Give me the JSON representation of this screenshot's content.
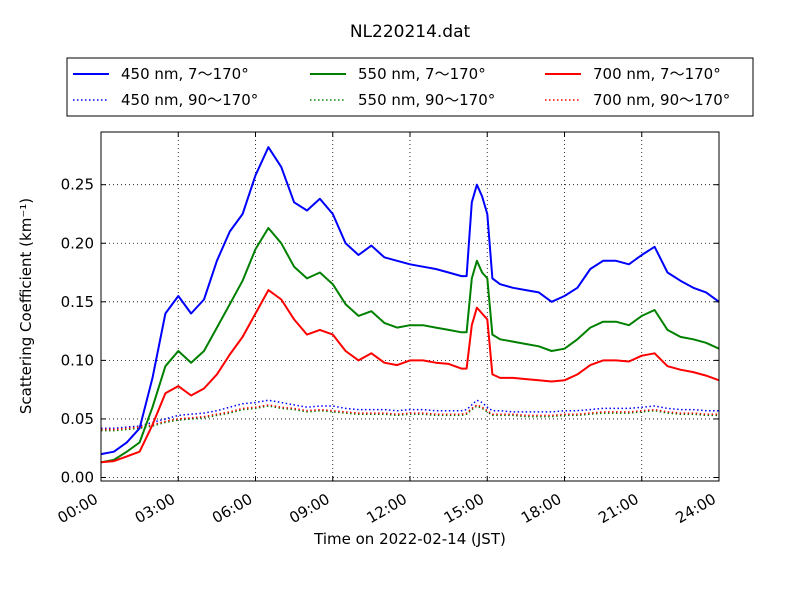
{
  "chart_data": {
    "type": "line",
    "title": "NL220214.dat",
    "xlabel": "Time on 2022-02-14 (JST)",
    "ylabel": "Scattering Coefficient (km⁻¹)",
    "x_tick_labels": [
      "00:00",
      "03:00",
      "06:00",
      "09:00",
      "12:00",
      "15:00",
      "18:00",
      "21:00",
      "24:00"
    ],
    "x_ticks_hours": [
      0,
      3,
      6,
      9,
      12,
      15,
      18,
      21,
      24
    ],
    "xlim_hours": [
      0,
      24
    ],
    "y_ticks": [
      0.0,
      0.05,
      0.1,
      0.15,
      0.2,
      0.25
    ],
    "y_tick_labels": [
      "0.00",
      "0.05",
      "0.10",
      "0.15",
      "0.20",
      "0.25"
    ],
    "ylim": [
      -0.003,
      0.295
    ],
    "grid": true,
    "legend_placement": "top, above plot, 3 columns",
    "x_hours": [
      0,
      0.5,
      1,
      1.5,
      2,
      2.5,
      3,
      3.5,
      4,
      4.5,
      5,
      5.5,
      6,
      6.5,
      7,
      7.5,
      8,
      8.5,
      9,
      9.5,
      10,
      10.5,
      11,
      11.5,
      12,
      12.5,
      13,
      13.5,
      14,
      14.2,
      14.4,
      14.6,
      14.8,
      15,
      15.2,
      15.5,
      16,
      16.5,
      17,
      17.5,
      18,
      18.5,
      19,
      19.5,
      20,
      20.5,
      21,
      21.5,
      22,
      22.5,
      23,
      23.5,
      24
    ],
    "series": [
      {
        "name": "450 nm, 7～170°",
        "color": "#0000ff",
        "style": "solid",
        "values": [
          0.02,
          0.022,
          0.03,
          0.042,
          0.085,
          0.14,
          0.155,
          0.14,
          0.152,
          0.185,
          0.21,
          0.225,
          0.258,
          0.282,
          0.265,
          0.235,
          0.228,
          0.238,
          0.225,
          0.2,
          0.19,
          0.198,
          0.188,
          0.185,
          0.182,
          0.18,
          0.178,
          0.175,
          0.172,
          0.172,
          0.235,
          0.25,
          0.24,
          0.225,
          0.17,
          0.165,
          0.162,
          0.16,
          0.158,
          0.15,
          0.155,
          0.162,
          0.178,
          0.185,
          0.185,
          0.182,
          0.19,
          0.197,
          0.175,
          0.168,
          0.162,
          0.158,
          0.15
        ]
      },
      {
        "name": "550 nm, 7～170°",
        "color": "#008000",
        "style": "solid",
        "values": [
          0.013,
          0.015,
          0.022,
          0.03,
          0.06,
          0.095,
          0.108,
          0.098,
          0.108,
          0.128,
          0.148,
          0.168,
          0.195,
          0.213,
          0.2,
          0.18,
          0.17,
          0.175,
          0.165,
          0.148,
          0.138,
          0.142,
          0.132,
          0.128,
          0.13,
          0.13,
          0.128,
          0.126,
          0.124,
          0.124,
          0.17,
          0.185,
          0.175,
          0.17,
          0.122,
          0.118,
          0.116,
          0.114,
          0.112,
          0.108,
          0.11,
          0.118,
          0.128,
          0.133,
          0.133,
          0.13,
          0.138,
          0.143,
          0.126,
          0.12,
          0.118,
          0.115,
          0.11
        ]
      },
      {
        "name": "700 nm, 7～170°",
        "color": "#ff0000",
        "style": "solid",
        "values": [
          0.013,
          0.014,
          0.018,
          0.022,
          0.045,
          0.072,
          0.078,
          0.07,
          0.076,
          0.088,
          0.105,
          0.12,
          0.14,
          0.16,
          0.152,
          0.135,
          0.122,
          0.126,
          0.122,
          0.108,
          0.1,
          0.106,
          0.098,
          0.096,
          0.1,
          0.1,
          0.098,
          0.097,
          0.093,
          0.093,
          0.13,
          0.145,
          0.14,
          0.135,
          0.088,
          0.085,
          0.085,
          0.084,
          0.083,
          0.082,
          0.083,
          0.088,
          0.096,
          0.1,
          0.1,
          0.099,
          0.104,
          0.106,
          0.095,
          0.092,
          0.09,
          0.087,
          0.083
        ]
      },
      {
        "name": "450 nm, 90～170°",
        "color": "#0000ff",
        "style": "dotted",
        "values": [
          0.042,
          0.042,
          0.043,
          0.044,
          0.047,
          0.05,
          0.053,
          0.054,
          0.055,
          0.057,
          0.06,
          0.063,
          0.064,
          0.066,
          0.064,
          0.062,
          0.06,
          0.061,
          0.061,
          0.059,
          0.058,
          0.058,
          0.058,
          0.057,
          0.058,
          0.058,
          0.057,
          0.057,
          0.057,
          0.058,
          0.062,
          0.066,
          0.064,
          0.06,
          0.057,
          0.057,
          0.056,
          0.056,
          0.056,
          0.056,
          0.057,
          0.057,
          0.058,
          0.059,
          0.059,
          0.059,
          0.06,
          0.061,
          0.059,
          0.058,
          0.058,
          0.057,
          0.057
        ]
      },
      {
        "name": "550 nm, 90～170°",
        "color": "#008000",
        "style": "dotted",
        "values": [
          0.04,
          0.04,
          0.041,
          0.042,
          0.044,
          0.047,
          0.049,
          0.05,
          0.051,
          0.053,
          0.055,
          0.058,
          0.059,
          0.061,
          0.059,
          0.058,
          0.056,
          0.057,
          0.056,
          0.055,
          0.054,
          0.054,
          0.054,
          0.053,
          0.054,
          0.054,
          0.053,
          0.053,
          0.053,
          0.054,
          0.058,
          0.061,
          0.059,
          0.056,
          0.053,
          0.053,
          0.053,
          0.052,
          0.052,
          0.052,
          0.053,
          0.053,
          0.054,
          0.055,
          0.055,
          0.055,
          0.056,
          0.057,
          0.055,
          0.054,
          0.054,
          0.053,
          0.053
        ]
      },
      {
        "name": "700 nm, 90～170°",
        "color": "#ff0000",
        "style": "dotted",
        "values": [
          0.041,
          0.041,
          0.042,
          0.043,
          0.045,
          0.048,
          0.05,
          0.051,
          0.052,
          0.054,
          0.056,
          0.059,
          0.06,
          0.062,
          0.06,
          0.059,
          0.057,
          0.058,
          0.057,
          0.056,
          0.055,
          0.055,
          0.055,
          0.054,
          0.055,
          0.055,
          0.054,
          0.054,
          0.054,
          0.055,
          0.059,
          0.062,
          0.06,
          0.057,
          0.054,
          0.054,
          0.054,
          0.053,
          0.053,
          0.053,
          0.054,
          0.054,
          0.055,
          0.056,
          0.056,
          0.056,
          0.057,
          0.058,
          0.056,
          0.055,
          0.055,
          0.054,
          0.054
        ]
      }
    ]
  }
}
